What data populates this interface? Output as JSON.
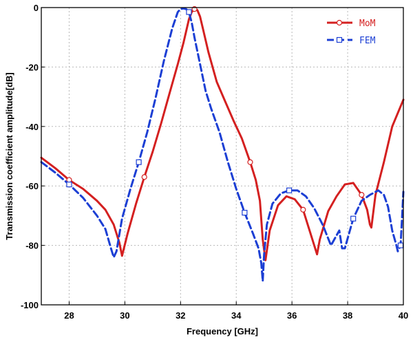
{
  "chart_data": {
    "type": "line",
    "title": "",
    "xlabel": "Frequency [GHz]",
    "ylabel": "Transmission coefficient amplitude[dB]",
    "xlim": [
      27,
      40
    ],
    "ylim": [
      -100,
      0
    ],
    "xticks": [
      28,
      30,
      32,
      34,
      36,
      38,
      40
    ],
    "yticks": [
      0,
      -20,
      -40,
      -60,
      -80,
      -100
    ],
    "grid": true,
    "legend_position": "top-right",
    "series": [
      {
        "name": "MoM",
        "color": "#d42020",
        "line_style": "solid",
        "marker": "circle",
        "x": [
          27.0,
          27.5,
          28.0,
          28.5,
          29.0,
          29.3,
          29.6,
          29.8,
          29.9,
          30.1,
          30.4,
          30.7,
          31.0,
          31.3,
          31.6,
          31.9,
          32.1,
          32.2,
          32.3,
          32.4,
          32.5,
          32.6,
          32.7,
          32.8,
          33.0,
          33.3,
          33.6,
          33.9,
          34.2,
          34.5,
          34.7,
          34.85,
          34.95,
          35.05,
          35.2,
          35.5,
          35.8,
          36.1,
          36.4,
          36.6,
          36.8,
          36.9,
          37.0,
          37.3,
          37.6,
          37.9,
          38.2,
          38.5,
          38.7,
          38.8,
          38.85,
          39.0,
          39.3,
          39.6,
          40.0
        ],
        "y": [
          -50.5,
          -54,
          -58,
          -61,
          -65,
          -68,
          -73,
          -79,
          -83.5,
          -76,
          -66,
          -57,
          -48.5,
          -39,
          -29,
          -19,
          -12,
          -8,
          -4,
          -1.5,
          -0.5,
          -0.8,
          -3,
          -7,
          -15,
          -25,
          -31.5,
          -38,
          -44,
          -52,
          -58,
          -65,
          -78,
          -85,
          -75,
          -66.5,
          -63.5,
          -64.5,
          -68,
          -74,
          -80,
          -83,
          -78,
          -68.5,
          -63.5,
          -59.5,
          -59,
          -63,
          -68,
          -73,
          -74,
          -63,
          -52,
          -40,
          -31
        ]
      },
      {
        "name": "FEM",
        "color": "#1c3fd4",
        "line_style": "dashed",
        "marker": "square",
        "x": [
          27.0,
          27.5,
          28.0,
          28.5,
          29.0,
          29.3,
          29.5,
          29.6,
          29.7,
          29.9,
          30.2,
          30.5,
          30.8,
          31.1,
          31.4,
          31.7,
          31.9,
          32.0,
          32.1,
          32.2,
          32.3,
          32.4,
          32.5,
          32.7,
          32.9,
          33.1,
          33.4,
          33.7,
          34.0,
          34.3,
          34.6,
          34.8,
          34.9,
          34.95,
          35.0,
          35.1,
          35.3,
          35.6,
          35.9,
          36.2,
          36.5,
          36.8,
          37.1,
          37.4,
          37.7,
          37.8,
          37.9,
          38.2,
          38.5,
          38.8,
          39.1,
          39.3,
          39.45,
          39.6,
          39.75,
          39.8,
          39.9,
          40.0
        ],
        "y": [
          -52,
          -55.5,
          -59.5,
          -64,
          -70,
          -74.5,
          -81,
          -84,
          -82,
          -71,
          -61,
          -52,
          -42,
          -30.5,
          -18,
          -7,
          -1.5,
          -0.5,
          -0.3,
          -0.5,
          -1.5,
          -5,
          -10,
          -19,
          -28,
          -34,
          -42,
          -52,
          -61,
          -69,
          -76,
          -81,
          -86,
          -92,
          -83,
          -73,
          -66,
          -62.5,
          -61.5,
          -61.5,
          -63.5,
          -67.5,
          -73,
          -80,
          -75,
          -81,
          -81,
          -71,
          -65,
          -63,
          -61.5,
          -63,
          -67,
          -75,
          -80,
          -82,
          -80,
          -62
        ]
      }
    ]
  }
}
